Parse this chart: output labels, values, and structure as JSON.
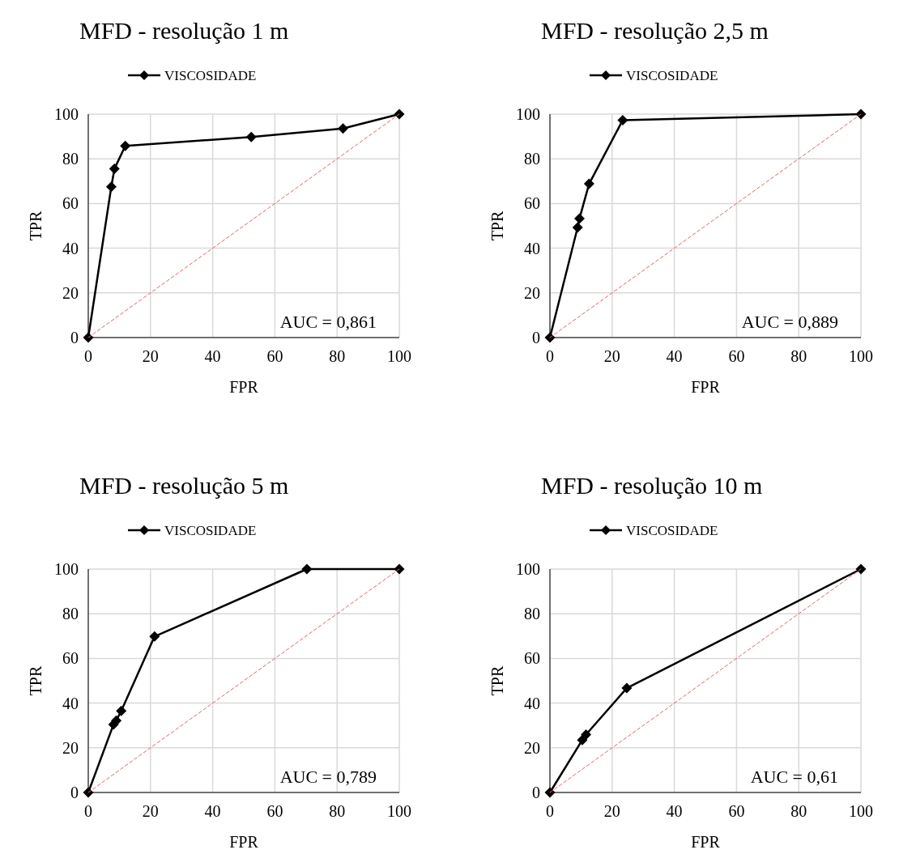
{
  "chart_data": [
    {
      "type": "line",
      "title": "MFD - resolução 1 m",
      "xlabel": "FPR",
      "ylabel": "TPR",
      "xlim": [
        0,
        100
      ],
      "ylim": [
        0,
        100
      ],
      "xticks": [
        0,
        20,
        40,
        60,
        80,
        100
      ],
      "yticks": [
        0,
        20,
        40,
        60,
        80,
        100
      ],
      "grid": true,
      "legend": "top",
      "marker": "diamond",
      "annotations": [
        "AUC = 0,861"
      ],
      "series": [
        {
          "name": "VISCOSIDADE",
          "color": "#000000",
          "x": [
            0,
            7.4,
            8.4,
            11.9,
            52.4,
            81.9,
            100
          ],
          "values": [
            0,
            67.5,
            75.5,
            85.8,
            89.8,
            93.6,
            100
          ]
        },
        {
          "color": "#e06666",
          "type": "line",
          "marker": "none",
          "line_style": "dashed",
          "x": [
            0,
            100
          ],
          "values": [
            0,
            100
          ]
        }
      ]
    },
    {
      "type": "line",
      "title": "MFD - resolução 2,5 m",
      "xlabel": "FPR",
      "ylabel": "TPR",
      "xlim": [
        0,
        100
      ],
      "ylim": [
        0,
        100
      ],
      "xticks": [
        0,
        20,
        40,
        60,
        80,
        100
      ],
      "yticks": [
        0,
        20,
        40,
        60,
        80,
        100
      ],
      "grid": true,
      "legend": "top",
      "marker": "diamond",
      "annotations": [
        "AUC = 0,889"
      ],
      "series": [
        {
          "name": "VISCOSIDADE",
          "color": "#000000",
          "x": [
            0,
            8.9,
            9.5,
            12.6,
            23.4,
            100
          ],
          "values": [
            0,
            49.3,
            53.3,
            68.8,
            97.3,
            100
          ]
        },
        {
          "color": "#e06666",
          "type": "line",
          "marker": "none",
          "line_style": "dashed",
          "x": [
            0,
            100
          ],
          "values": [
            0,
            100
          ]
        }
      ]
    },
    {
      "type": "line",
      "title": "MFD - resolução 5 m",
      "xlabel": "FPR",
      "ylabel": "TPR",
      "xlim": [
        0,
        100
      ],
      "ylim": [
        0,
        100
      ],
      "xticks": [
        0,
        20,
        40,
        60,
        80,
        100
      ],
      "yticks": [
        0,
        20,
        40,
        60,
        80,
        100
      ],
      "grid": true,
      "legend": "top",
      "marker": "diamond",
      "annotations": [
        "AUC = 0,789"
      ],
      "series": [
        {
          "name": "VISCOSIDADE",
          "color": "#000000",
          "x": [
            0,
            8.1,
            9.0,
            10.6,
            21.3,
            70.3,
            100
          ],
          "values": [
            0,
            30.4,
            32.2,
            36.5,
            69.8,
            100,
            100
          ]
        },
        {
          "color": "#e06666",
          "type": "line",
          "marker": "none",
          "line_style": "dashed",
          "x": [
            0,
            100
          ],
          "values": [
            0,
            100
          ]
        }
      ]
    },
    {
      "type": "line",
      "title": "MFD - resolução 10 m",
      "xlabel": "FPR",
      "ylabel": "TPR",
      "xlim": [
        0,
        100
      ],
      "ylim": [
        0,
        100
      ],
      "xticks": [
        0,
        20,
        40,
        60,
        80,
        100
      ],
      "yticks": [
        0,
        20,
        40,
        60,
        80,
        100
      ],
      "grid": true,
      "legend": "top",
      "marker": "diamond",
      "annotations": [
        "AUC = 0,61"
      ],
      "series": [
        {
          "name": "VISCOSIDADE",
          "color": "#000000",
          "x": [
            0,
            10.4,
            11.6,
            24.7,
            100
          ],
          "values": [
            0,
            23.5,
            25.9,
            46.7,
            100
          ]
        },
        {
          "color": "#e06666",
          "type": "line",
          "marker": "none",
          "line_style": "dashed",
          "x": [
            0,
            100
          ],
          "values": [
            0,
            100
          ]
        }
      ]
    }
  ]
}
